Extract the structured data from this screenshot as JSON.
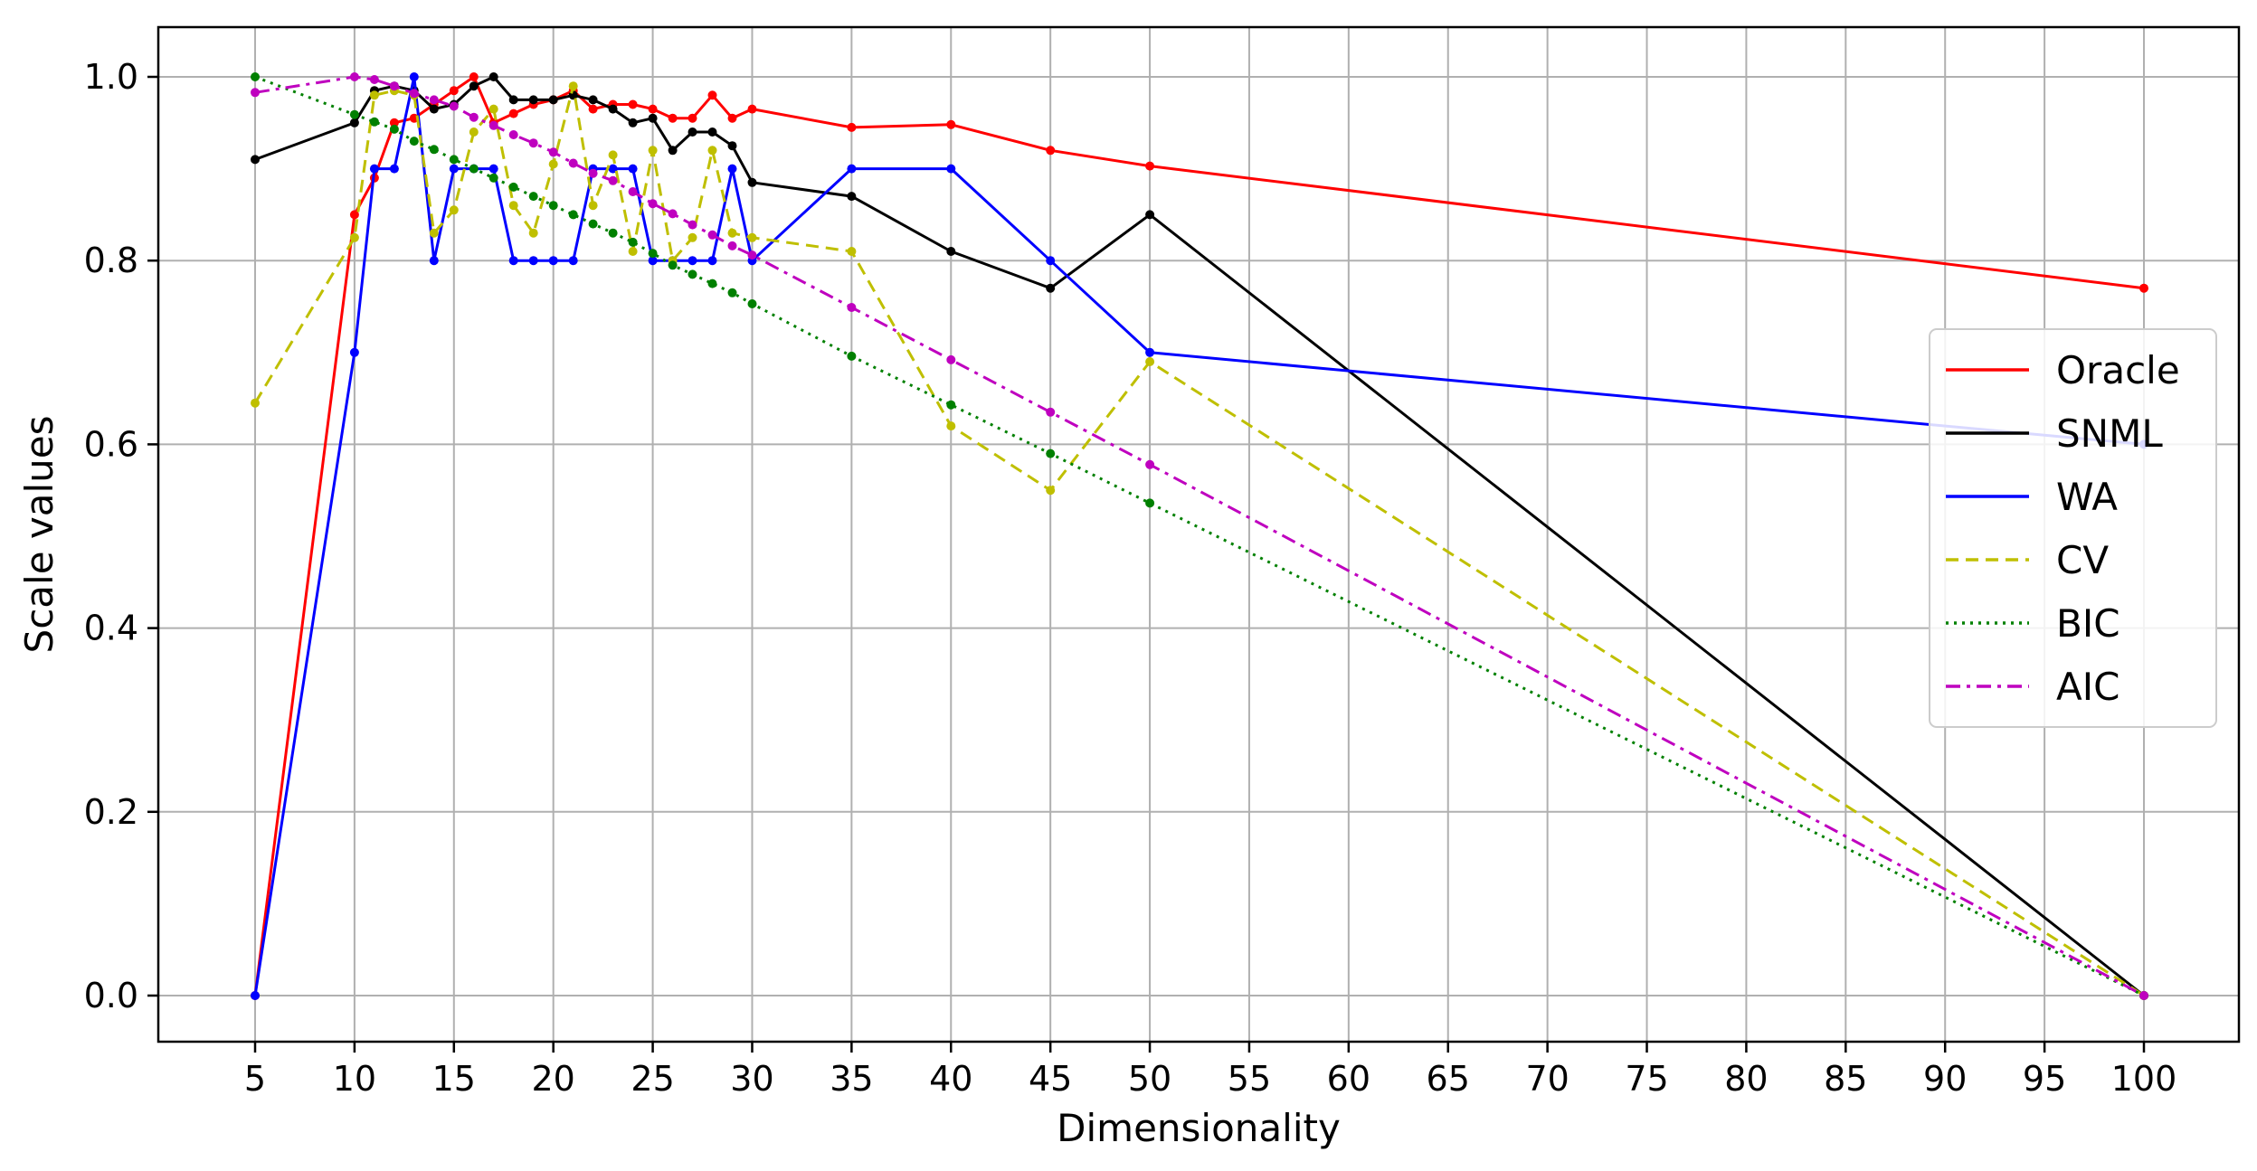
{
  "chart_data": {
    "type": "line",
    "title": "",
    "xlabel": "Dimensionality",
    "ylabel": "Scale values",
    "x_ticks": [
      "5",
      "10",
      "15",
      "20",
      "25",
      "30",
      "35",
      "40",
      "45",
      "50",
      "55",
      "60",
      "65",
      "70",
      "75",
      "80",
      "85",
      "90",
      "95",
      "100"
    ],
    "y_ticks": [
      "0.0",
      "0.2",
      "0.4",
      "0.6",
      "0.8",
      "1.0"
    ],
    "ylim": [
      -0.05,
      1.05
    ],
    "grid": true,
    "legend_position": "center-right",
    "series": [
      {
        "name": "Oracle",
        "color": "#ff0000",
        "dash": "solid",
        "x": [
          5,
          10,
          11,
          12,
          13,
          14,
          15,
          16,
          17,
          18,
          19,
          20,
          21,
          22,
          23,
          24,
          25,
          26,
          27,
          28,
          29,
          30,
          35,
          40,
          45,
          50,
          100
        ],
        "y": [
          0.0,
          0.85,
          0.89,
          0.95,
          0.955,
          0.97,
          0.985,
          1.0,
          0.95,
          0.96,
          0.97,
          0.975,
          0.985,
          0.965,
          0.97,
          0.97,
          0.965,
          0.955,
          0.955,
          0.98,
          0.955,
          0.965,
          0.945,
          0.948,
          0.92,
          0.903,
          0.77
        ]
      },
      {
        "name": "SNML",
        "color": "#000000",
        "dash": "solid",
        "x": [
          5,
          10,
          11,
          12,
          13,
          14,
          15,
          16,
          17,
          18,
          19,
          20,
          21,
          22,
          23,
          24,
          25,
          26,
          27,
          28,
          29,
          30,
          35,
          40,
          45,
          50,
          100
        ],
        "y": [
          0.91,
          0.95,
          0.985,
          0.99,
          0.985,
          0.965,
          0.97,
          0.99,
          1.0,
          0.975,
          0.975,
          0.975,
          0.98,
          0.975,
          0.965,
          0.95,
          0.955,
          0.92,
          0.94,
          0.94,
          0.925,
          0.885,
          0.87,
          0.81,
          0.77,
          0.85,
          0.0
        ]
      },
      {
        "name": "WA",
        "color": "#0000ff",
        "dash": "solid",
        "x": [
          5,
          10,
          11,
          12,
          13,
          14,
          15,
          16,
          17,
          18,
          19,
          20,
          21,
          22,
          23,
          24,
          25,
          26,
          27,
          28,
          29,
          30,
          35,
          40,
          45,
          50,
          100
        ],
        "y": [
          0.0,
          0.7,
          0.9,
          0.9,
          1.0,
          0.8,
          0.9,
          0.9,
          0.9,
          0.8,
          0.8,
          0.8,
          0.8,
          0.9,
          0.9,
          0.9,
          0.8,
          0.8,
          0.8,
          0.8,
          0.9,
          0.8,
          0.9,
          0.9,
          0.8,
          0.7,
          0.6
        ]
      },
      {
        "name": "CV",
        "color": "#bfbf00",
        "dash": "dashed",
        "x": [
          5,
          10,
          11,
          12,
          13,
          14,
          15,
          16,
          17,
          18,
          19,
          20,
          21,
          22,
          23,
          24,
          25,
          26,
          27,
          28,
          29,
          30,
          35,
          40,
          45,
          50,
          100
        ],
        "y": [
          0.645,
          0.825,
          0.98,
          0.985,
          0.98,
          0.83,
          0.855,
          0.94,
          0.965,
          0.86,
          0.83,
          0.905,
          0.99,
          0.86,
          0.915,
          0.81,
          0.92,
          0.8,
          0.825,
          0.92,
          0.83,
          0.825,
          0.81,
          0.62,
          0.55,
          0.69,
          0.0
        ]
      },
      {
        "name": "BIC",
        "color": "#008000",
        "dash": "dotted",
        "x": [
          5,
          10,
          11,
          12,
          13,
          14,
          15,
          16,
          17,
          18,
          19,
          20,
          21,
          22,
          23,
          24,
          25,
          26,
          27,
          28,
          29,
          30,
          35,
          40,
          45,
          50,
          100
        ],
        "y": [
          1.0,
          0.959,
          0.951,
          0.943,
          0.93,
          0.921,
          0.91,
          0.9,
          0.89,
          0.88,
          0.87,
          0.86,
          0.85,
          0.84,
          0.83,
          0.82,
          0.808,
          0.795,
          0.785,
          0.775,
          0.765,
          0.753,
          0.696,
          0.643,
          0.59,
          0.536,
          0.0
        ]
      },
      {
        "name": "AIC",
        "color": "#bf00bf",
        "dash": "dashdot",
        "x": [
          5,
          10,
          11,
          12,
          13,
          14,
          15,
          16,
          17,
          18,
          19,
          20,
          21,
          22,
          23,
          24,
          25,
          26,
          27,
          28,
          29,
          30,
          35,
          40,
          45,
          50,
          100
        ],
        "y": [
          0.983,
          1.0,
          0.997,
          0.99,
          0.982,
          0.975,
          0.968,
          0.956,
          0.947,
          0.937,
          0.928,
          0.918,
          0.906,
          0.895,
          0.887,
          0.875,
          0.862,
          0.851,
          0.839,
          0.828,
          0.816,
          0.806,
          0.749,
          0.692,
          0.635,
          0.578,
          0.0
        ]
      }
    ]
  }
}
